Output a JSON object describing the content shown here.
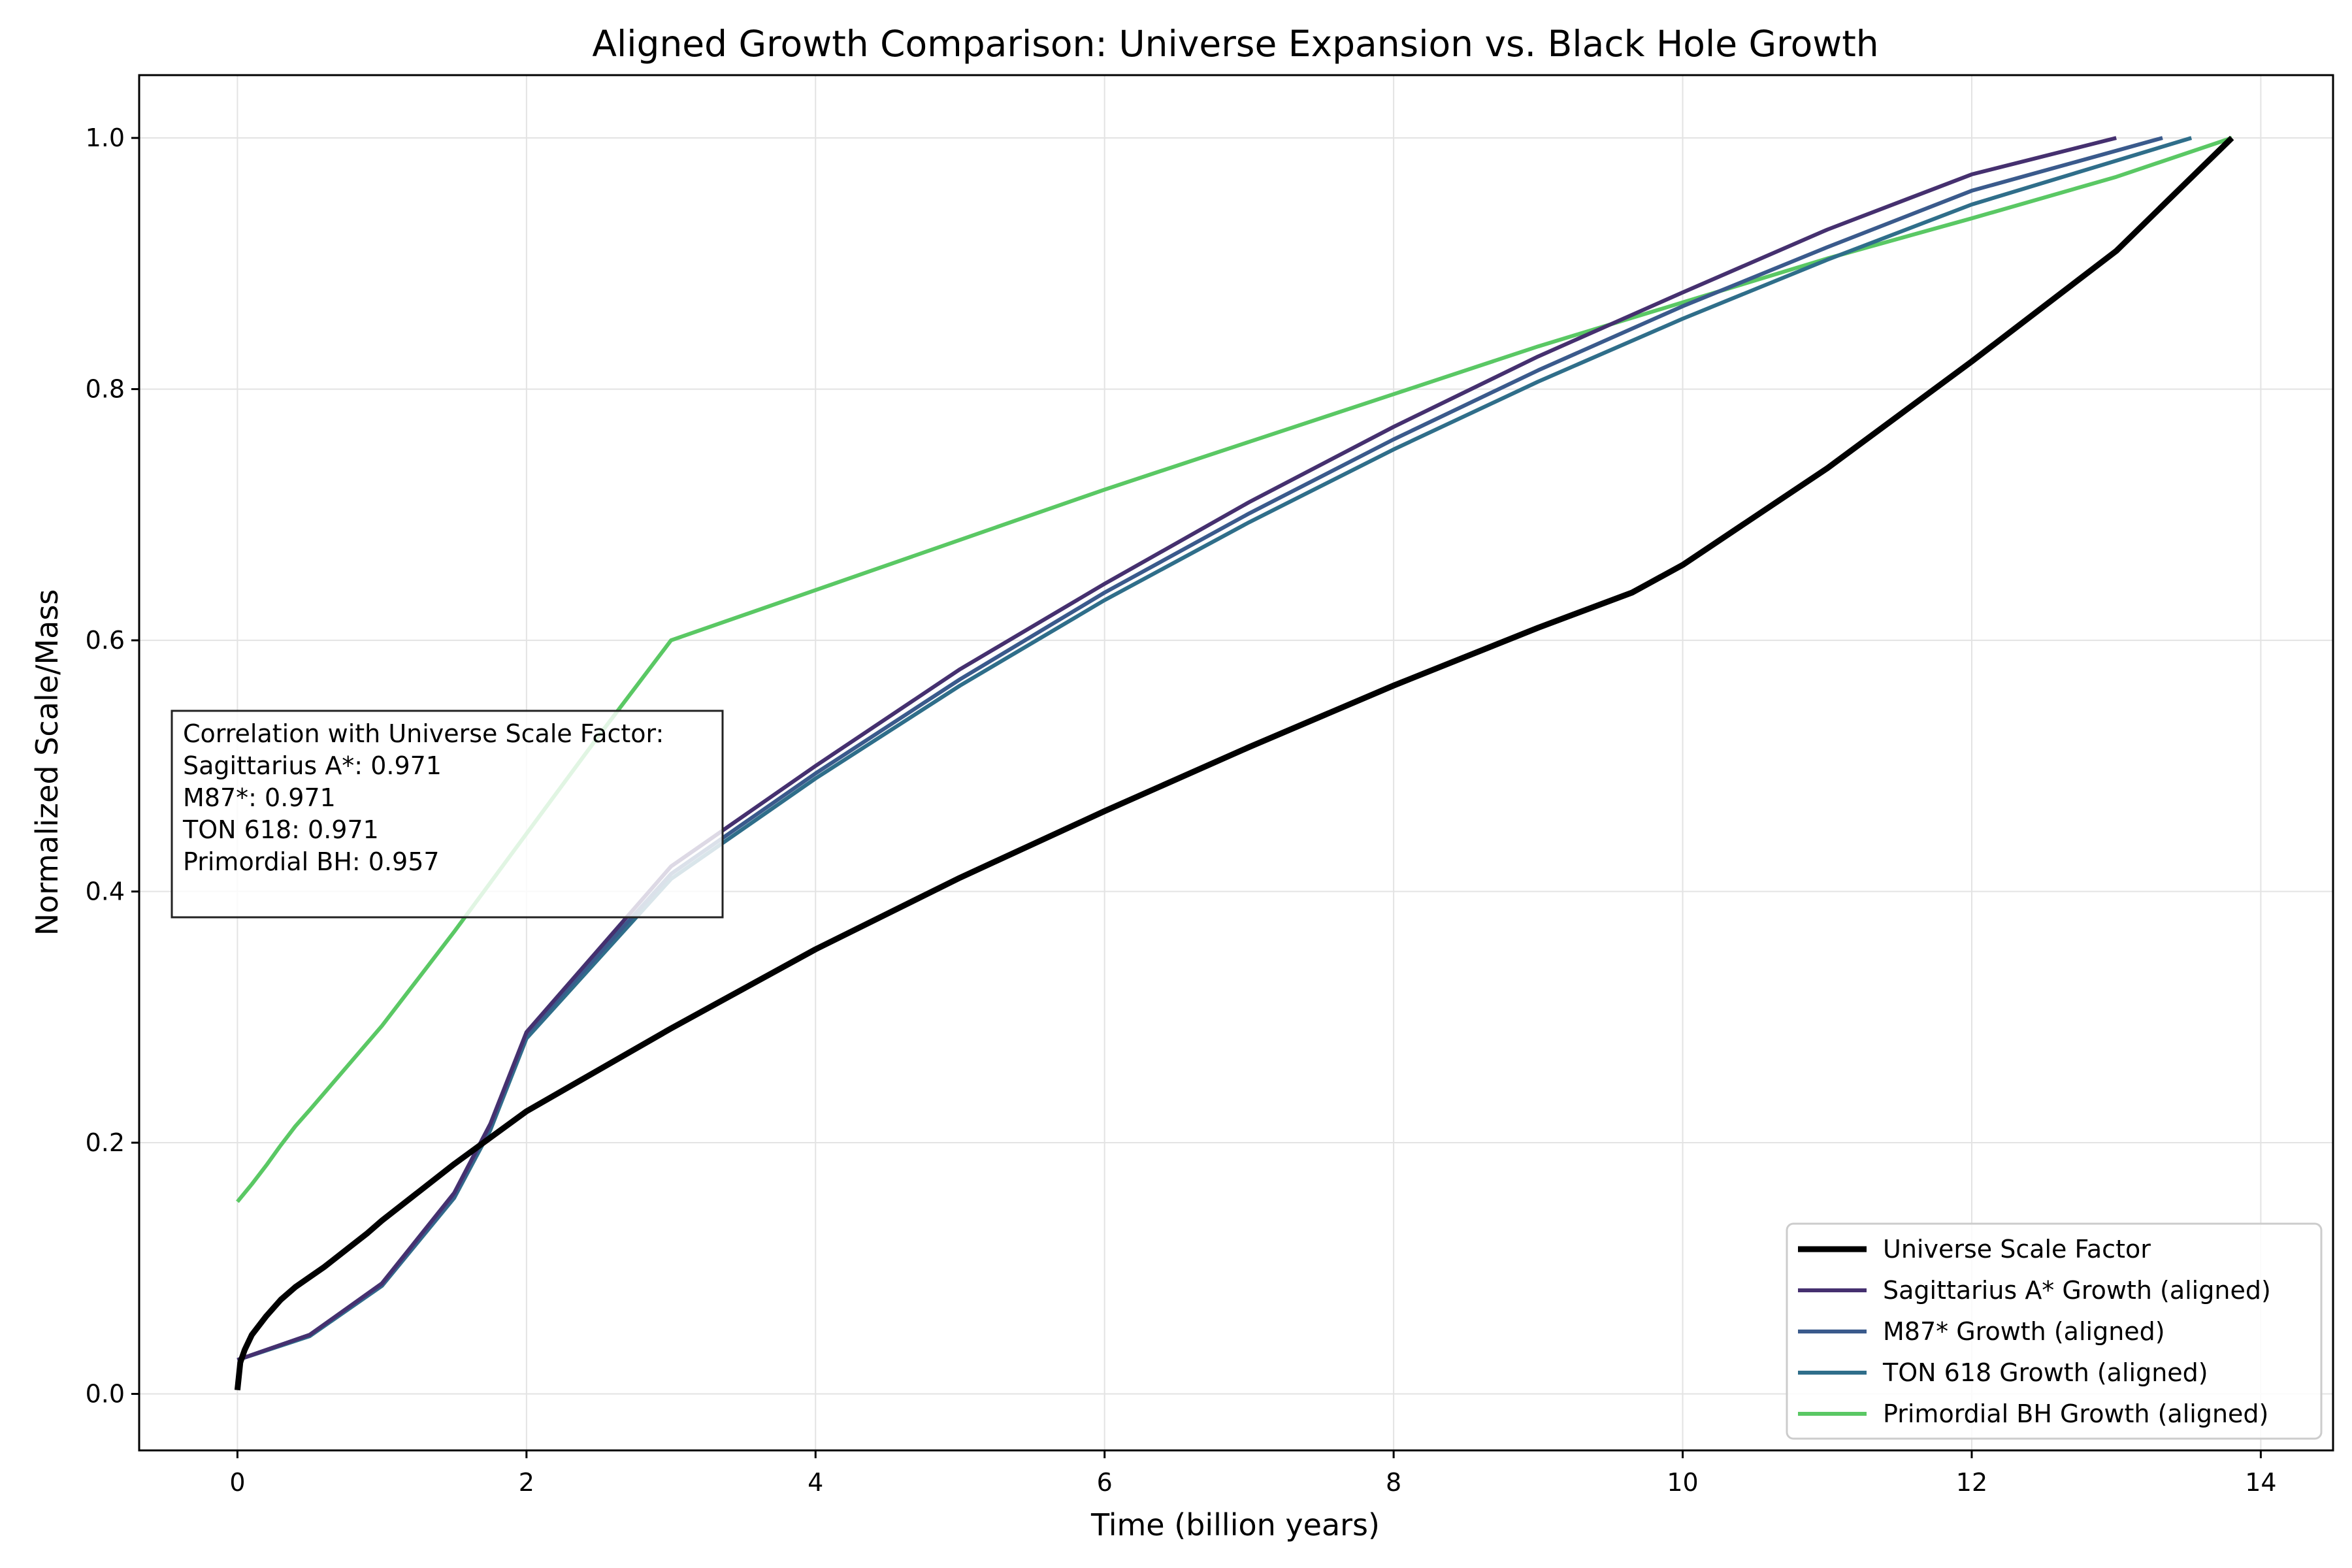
{
  "chart_data": {
    "type": "line",
    "title": "Aligned Growth Comparison: Universe Expansion vs. Black Hole Growth",
    "xlabel": "Time (billion years)",
    "ylabel": "Normalized Scale/Mass",
    "xlim": [
      -0.68,
      14.5
    ],
    "ylim": [
      -0.045,
      1.05
    ],
    "x_ticks": [
      0,
      2,
      4,
      6,
      8,
      10,
      12,
      14
    ],
    "x_tick_labels": [
      "0",
      "2",
      "4",
      "6",
      "8",
      "10",
      "12",
      "14"
    ],
    "y_ticks": [
      0.0,
      0.2,
      0.4,
      0.6,
      0.8,
      1.0
    ],
    "y_tick_labels": [
      "0.0",
      "0.2",
      "0.4",
      "0.6",
      "0.8",
      "1.0"
    ],
    "grid": true,
    "legend_position": "lower-right",
    "series": [
      {
        "name": "Universe Scale Factor",
        "color": "#000000",
        "width": 9,
        "x": [
          0.0,
          0.02,
          0.05,
          0.1,
          0.2,
          0.3,
          0.4,
          0.5,
          0.6,
          0.7,
          0.9,
          1.0,
          1.5,
          2.0,
          3.0,
          4.0,
          5.0,
          6.0,
          7.0,
          8.0,
          9.0,
          9.65,
          10.0,
          11.0,
          12.0,
          13.0,
          13.8
        ],
        "y": [
          0.003,
          0.025,
          0.035,
          0.047,
          0.062,
          0.075,
          0.085,
          0.093,
          0.101,
          0.11,
          0.128,
          0.138,
          0.183,
          0.225,
          0.291,
          0.354,
          0.411,
          0.464,
          0.515,
          0.564,
          0.61,
          0.638,
          0.66,
          0.737,
          0.822,
          0.91,
          1.0
        ]
      },
      {
        "name": "Sagittarius A* Growth (aligned)",
        "color": "#45306f",
        "width": 6,
        "x": [
          0.0,
          0.5,
          1.0,
          1.5,
          1.75,
          2.0,
          3.0,
          4.0,
          5.0,
          6.0,
          7.0,
          8.0,
          9.0,
          10.0,
          11.0,
          12.0,
          13.0
        ],
        "y": [
          0.027,
          0.047,
          0.088,
          0.16,
          0.215,
          0.288,
          0.42,
          0.5,
          0.577,
          0.645,
          0.71,
          0.77,
          0.826,
          0.877,
          0.927,
          0.971,
          1.0
        ]
      },
      {
        "name": "M87* Growth (aligned)",
        "color": "#3a5a8c",
        "width": 6,
        "x": [
          0.0,
          0.5,
          1.0,
          1.5,
          1.75,
          2.0,
          3.0,
          4.0,
          5.0,
          6.0,
          7.0,
          8.0,
          9.0,
          10.0,
          11.0,
          12.0,
          13.32
        ],
        "y": [
          0.027,
          0.047,
          0.087,
          0.158,
          0.213,
          0.286,
          0.414,
          0.494,
          0.569,
          0.638,
          0.701,
          0.76,
          0.815,
          0.866,
          0.913,
          0.958,
          1.0
        ]
      },
      {
        "name": "TON 618 Growth (aligned)",
        "color": "#2f6e8a",
        "width": 6,
        "x": [
          0.0,
          0.5,
          1.0,
          1.5,
          1.75,
          2.0,
          3.0,
          4.0,
          5.0,
          6.0,
          7.0,
          8.0,
          9.0,
          10.0,
          11.0,
          12.0,
          13.52
        ],
        "y": [
          0.027,
          0.046,
          0.086,
          0.156,
          0.21,
          0.283,
          0.41,
          0.49,
          0.564,
          0.632,
          0.694,
          0.752,
          0.806,
          0.856,
          0.903,
          0.947,
          1.0
        ]
      },
      {
        "name": "Primordial BH Growth (aligned)",
        "color": "#5ac864",
        "width": 6,
        "x": [
          0.0,
          0.1,
          0.2,
          0.3,
          0.4,
          0.5,
          1.0,
          1.5,
          2.0,
          2.5,
          3.0,
          4.0,
          5.0,
          6.0,
          7.0,
          8.0,
          9.0,
          10.0,
          11.0,
          12.0,
          13.0,
          13.8
        ],
        "y": [
          0.153,
          0.167,
          0.182,
          0.198,
          0.213,
          0.226,
          0.293,
          0.368,
          0.446,
          0.524,
          0.6,
          0.64,
          0.68,
          0.72,
          0.758,
          0.796,
          0.834,
          0.869,
          0.904,
          0.936,
          0.969,
          1.0
        ]
      }
    ],
    "annotation": {
      "lines": [
        "Correlation with Universe Scale Factor:",
        "Sagittarius A*: 0.971",
        "M87*: 0.971",
        "TON 618: 0.971",
        "Primordial BH: 0.957"
      ]
    }
  }
}
